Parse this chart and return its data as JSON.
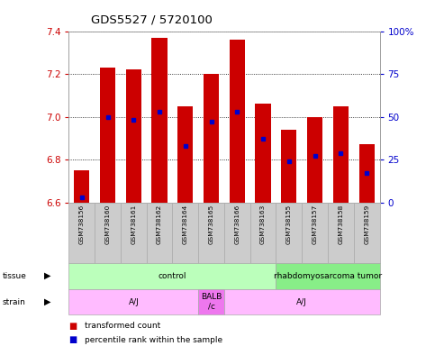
{
  "title": "GDS5527 / 5720100",
  "samples": [
    "GSM738156",
    "GSM738160",
    "GSM738161",
    "GSM738162",
    "GSM738164",
    "GSM738165",
    "GSM738166",
    "GSM738163",
    "GSM738155",
    "GSM738157",
    "GSM738158",
    "GSM738159"
  ],
  "bar_bottom": 6.6,
  "transformed_counts": [
    6.75,
    7.23,
    7.22,
    7.37,
    7.05,
    7.2,
    7.36,
    7.06,
    6.94,
    7.0,
    7.05,
    6.87
  ],
  "percentile_ranks": [
    3,
    50,
    48,
    53,
    33,
    47,
    53,
    37,
    24,
    27,
    29,
    17
  ],
  "ylim_left": [
    6.6,
    7.4
  ],
  "ylim_right": [
    0,
    100
  ],
  "yticks_left": [
    6.6,
    6.8,
    7.0,
    7.2,
    7.4
  ],
  "yticks_right": [
    0,
    25,
    50,
    75,
    100
  ],
  "bar_color": "#cc0000",
  "percentile_color": "#0000cc",
  "bar_width": 0.6,
  "tissue_groups": [
    {
      "label": "control",
      "start": 0,
      "end": 8,
      "color": "#bbffbb"
    },
    {
      "label": "rhabdomyosarcoma tumor",
      "start": 8,
      "end": 12,
      "color": "#88ee88"
    }
  ],
  "strain_groups": [
    {
      "label": "A/J",
      "start": 0,
      "end": 5,
      "color": "#ffbbff"
    },
    {
      "label": "BALB\n/c",
      "start": 5,
      "end": 6,
      "color": "#ee77ee"
    },
    {
      "label": "A/J",
      "start": 6,
      "end": 12,
      "color": "#ffbbff"
    }
  ],
  "legend_items": [
    {
      "label": "transformed count",
      "color": "#cc0000"
    },
    {
      "label": "percentile rank within the sample",
      "color": "#0000cc"
    }
  ],
  "tick_color_left": "#cc0000",
  "tick_color_right": "#0000cc",
  "label_bg": "#cccccc"
}
